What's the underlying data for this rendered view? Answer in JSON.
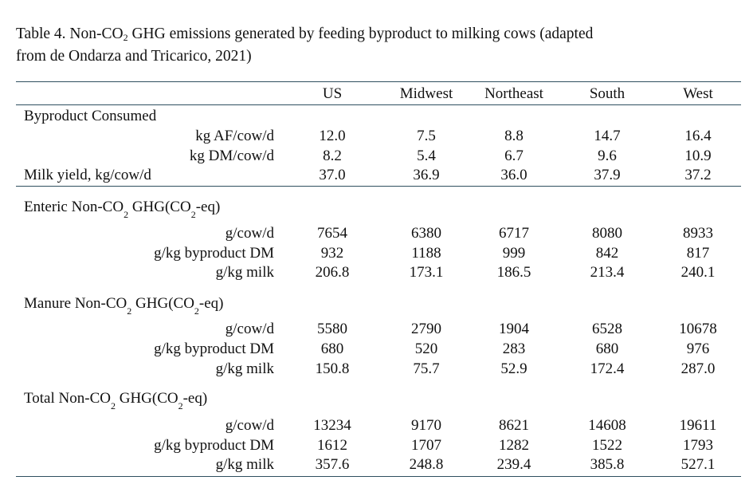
{
  "caption": {
    "prefix": "Table 4.  Non-CO",
    "sub": "2",
    "suffix_line1": " GHG emissions generated by feeding byproduct to milking cows (adapted",
    "line2": "from de Ondarza and Tricarico, 2021)"
  },
  "columns": [
    "US",
    "Midwest",
    "Northeast",
    "South",
    "West"
  ],
  "byproduct": {
    "heading": "Byproduct Consumed",
    "rows": [
      {
        "label": "kg AF/cow/d",
        "values": [
          "12.0",
          "7.5",
          "8.8",
          "14.7",
          "16.4"
        ]
      },
      {
        "label": "kg DM/cow/d",
        "values": [
          "8.2",
          "5.4",
          "6.7",
          "9.6",
          "10.9"
        ]
      }
    ],
    "milk": {
      "label": "Milk yield, kg/cow/d",
      "values": [
        "37.0",
        "36.9",
        "36.0",
        "37.9",
        "37.2"
      ]
    }
  },
  "sections": [
    {
      "heading_a": "Enteric Non-CO",
      "heading_b": " GHG(CO",
      "heading_c": "-eq)",
      "sub": "2",
      "rows": [
        {
          "label": "g/cow/d",
          "values": [
            "7654",
            "6380",
            "6717",
            "8080",
            "8933"
          ]
        },
        {
          "label": "g/kg byproduct DM",
          "values": [
            "932",
            "1188",
            "999",
            "842",
            "817"
          ]
        },
        {
          "label": "g/kg milk",
          "values": [
            "206.8",
            "173.1",
            "186.5",
            "213.4",
            "240.1"
          ]
        }
      ]
    },
    {
      "heading_a": "Manure Non-CO",
      "heading_b": " GHG(CO",
      "heading_c": "-eq)",
      "sub": "2",
      "rows": [
        {
          "label": "g/cow/d",
          "values": [
            "5580",
            "2790",
            "1904",
            "6528",
            "10678"
          ]
        },
        {
          "label": "g/kg byproduct DM",
          "values": [
            "680",
            "520",
            "283",
            "680",
            "976"
          ]
        },
        {
          "label": "g/kg milk",
          "values": [
            "150.8",
            "75.7",
            "52.9",
            "172.4",
            "287.0"
          ]
        }
      ]
    },
    {
      "heading_a": "Total Non-CO",
      "heading_b": " GHG(CO",
      "heading_c": "-eq)",
      "sub": "2",
      "rows": [
        {
          "label": "g/cow/d",
          "values": [
            "13234",
            "9170",
            "8621",
            "14608",
            "19611"
          ]
        },
        {
          "label": "g/kg byproduct DM",
          "values": [
            "1612",
            "1707",
            "1282",
            "1522",
            "1793"
          ]
        },
        {
          "label": "g/kg milk",
          "values": [
            "357.6",
            "248.8",
            "239.4",
            "385.8",
            "527.1"
          ]
        }
      ]
    }
  ]
}
